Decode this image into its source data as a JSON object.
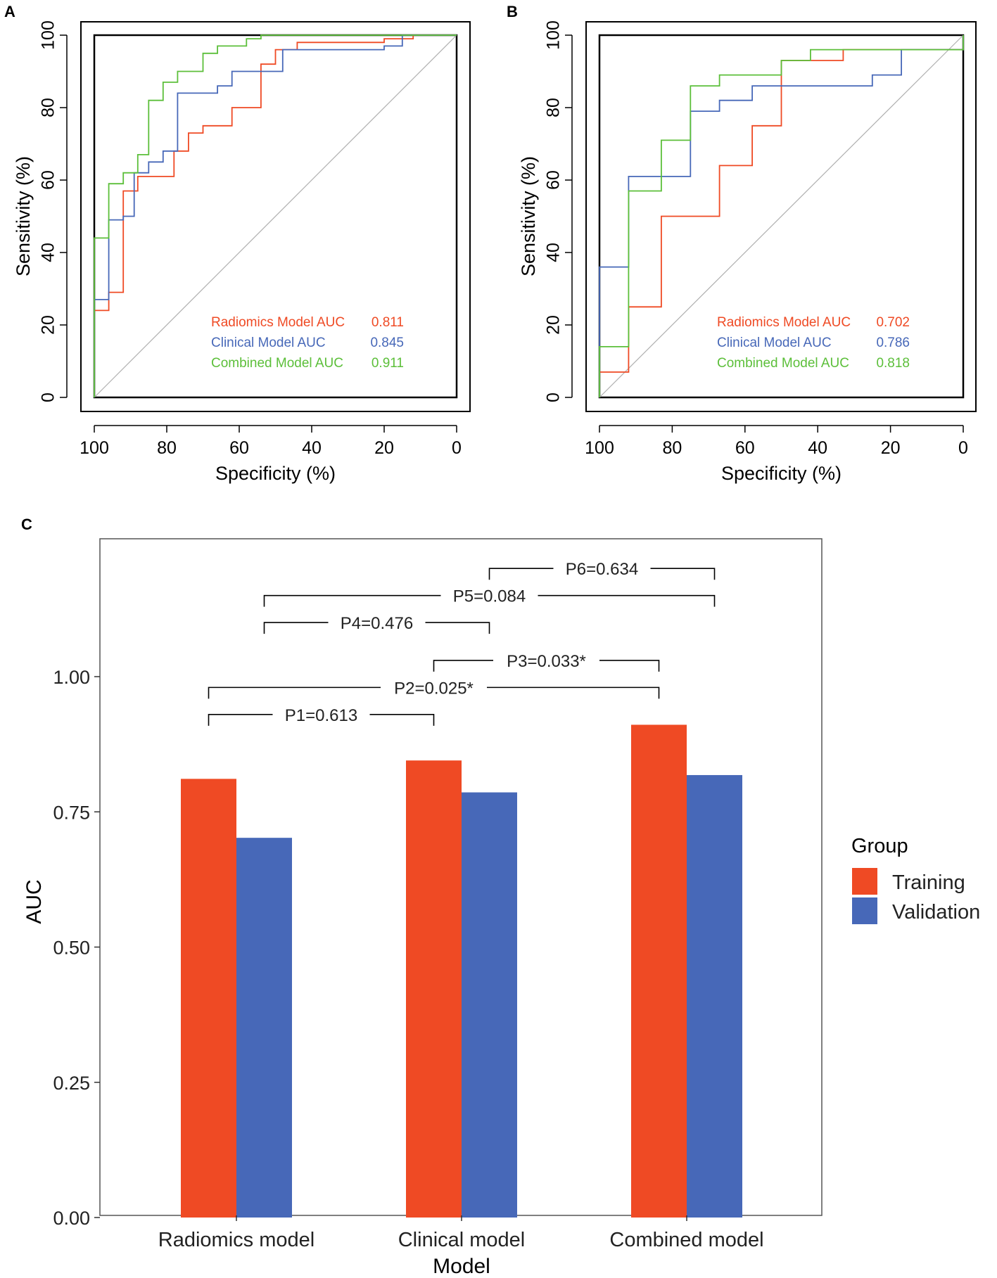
{
  "chart_data": [
    {
      "panel": "A",
      "type": "line",
      "xlabel": "Specificity (%)",
      "ylabel": "Sensitivity (%)",
      "xlim": [
        100,
        0
      ],
      "ylim": [
        0,
        100
      ],
      "xticks": [
        "100",
        "80",
        "60",
        "40",
        "20",
        "0"
      ],
      "yticks": [
        "0",
        "20",
        "40",
        "60",
        "80",
        "100"
      ],
      "series": [
        {
          "name": "Radiomics Model AUC 0.811",
          "label_text": "Radiomics Model AUC",
          "auc": "0.811",
          "color": "#ef4a24",
          "points": [
            [
              100,
              0
            ],
            [
              100,
              24
            ],
            [
              96,
              24
            ],
            [
              96,
              29
            ],
            [
              92,
              29
            ],
            [
              92,
              57
            ],
            [
              88,
              57
            ],
            [
              88,
              61
            ],
            [
              78,
              61
            ],
            [
              78,
              68
            ],
            [
              74,
              68
            ],
            [
              74,
              73
            ],
            [
              70,
              73
            ],
            [
              70,
              75
            ],
            [
              62,
              75
            ],
            [
              62,
              80
            ],
            [
              54,
              80
            ],
            [
              54,
              92
            ],
            [
              50,
              92
            ],
            [
              50,
              96
            ],
            [
              44,
              96
            ],
            [
              44,
              98
            ],
            [
              20,
              98
            ],
            [
              20,
              99
            ],
            [
              12,
              99
            ],
            [
              12,
              100
            ],
            [
              0,
              100
            ]
          ]
        },
        {
          "name": "Clinical Model AUC 0.845",
          "label_text": "Clinical Model AUC",
          "auc": "0.845",
          "color": "#4768b8",
          "points": [
            [
              100,
              0
            ],
            [
              100,
              27
            ],
            [
              96,
              27
            ],
            [
              96,
              49
            ],
            [
              92,
              49
            ],
            [
              92,
              50
            ],
            [
              89,
              50
            ],
            [
              89,
              62
            ],
            [
              85,
              62
            ],
            [
              85,
              65
            ],
            [
              81,
              65
            ],
            [
              81,
              68
            ],
            [
              77,
              68
            ],
            [
              77,
              84
            ],
            [
              66,
              84
            ],
            [
              66,
              86
            ],
            [
              62,
              86
            ],
            [
              62,
              90
            ],
            [
              54,
              90
            ],
            [
              54,
              90
            ],
            [
              48,
              90
            ],
            [
              48,
              96
            ],
            [
              20,
              96
            ],
            [
              20,
              97
            ],
            [
              15,
              97
            ],
            [
              15,
              100
            ],
            [
              0,
              100
            ]
          ]
        },
        {
          "name": "Combined Model AUC 0.911",
          "label_text": "Combined Model AUC",
          "auc": "0.911",
          "color": "#5cbf3a",
          "points": [
            [
              100,
              0
            ],
            [
              100,
              44
            ],
            [
              96,
              44
            ],
            [
              96,
              59
            ],
            [
              92,
              59
            ],
            [
              92,
              62
            ],
            [
              88,
              62
            ],
            [
              88,
              67
            ],
            [
              85,
              67
            ],
            [
              85,
              82
            ],
            [
              81,
              82
            ],
            [
              81,
              87
            ],
            [
              77,
              87
            ],
            [
              77,
              90
            ],
            [
              70,
              90
            ],
            [
              70,
              95
            ],
            [
              66,
              95
            ],
            [
              66,
              97
            ],
            [
              58,
              97
            ],
            [
              58,
              99
            ],
            [
              54,
              99
            ],
            [
              54,
              100
            ],
            [
              0,
              100
            ]
          ]
        }
      ]
    },
    {
      "panel": "B",
      "type": "line",
      "xlabel": "Specificity (%)",
      "ylabel": "Sensitivity (%)",
      "xlim": [
        100,
        0
      ],
      "ylim": [
        0,
        100
      ],
      "xticks": [
        "100",
        "80",
        "60",
        "40",
        "20",
        "0"
      ],
      "yticks": [
        "0",
        "20",
        "40",
        "60",
        "80",
        "100"
      ],
      "series": [
        {
          "name": "Radiomics Model AUC 0.702",
          "label_text": "Radiomics Model AUC",
          "auc": "0.702",
          "color": "#ef4a24",
          "points": [
            [
              100,
              0
            ],
            [
              100,
              7
            ],
            [
              92,
              7
            ],
            [
              92,
              25
            ],
            [
              83,
              25
            ],
            [
              83,
              50
            ],
            [
              67,
              50
            ],
            [
              67,
              64
            ],
            [
              58,
              64
            ],
            [
              58,
              75
            ],
            [
              50,
              75
            ],
            [
              50,
              93
            ],
            [
              33,
              93
            ],
            [
              33,
              96
            ],
            [
              0,
              96
            ],
            [
              0,
              100
            ]
          ]
        },
        {
          "name": "Clinical Model AUC 0.786",
          "label_text": "Clinical Model AUC",
          "auc": "0.786",
          "color": "#4768b8",
          "points": [
            [
              100,
              0
            ],
            [
              100,
              36
            ],
            [
              92,
              36
            ],
            [
              92,
              61
            ],
            [
              75,
              61
            ],
            [
              75,
              79
            ],
            [
              67,
              79
            ],
            [
              67,
              82
            ],
            [
              58,
              82
            ],
            [
              58,
              86
            ],
            [
              25,
              86
            ],
            [
              25,
              89
            ],
            [
              17,
              89
            ],
            [
              17,
              96
            ],
            [
              0,
              96
            ],
            [
              0,
              100
            ]
          ]
        },
        {
          "name": "Combined Model AUC 0.818",
          "label_text": "Combined Model AUC",
          "auc": "0.818",
          "color": "#5cbf3a",
          "points": [
            [
              100,
              0
            ],
            [
              100,
              14
            ],
            [
              92,
              14
            ],
            [
              92,
              57
            ],
            [
              83,
              57
            ],
            [
              83,
              71
            ],
            [
              75,
              71
            ],
            [
              75,
              86
            ],
            [
              67,
              86
            ],
            [
              67,
              89
            ],
            [
              50,
              89
            ],
            [
              50,
              93
            ],
            [
              42,
              93
            ],
            [
              42,
              96
            ],
            [
              0,
              96
            ],
            [
              0,
              100
            ]
          ]
        }
      ]
    },
    {
      "panel": "C",
      "type": "bar",
      "xlabel": "Model",
      "ylabel": "AUC",
      "ylim": [
        0,
        1.25
      ],
      "yticks": [
        "0.00",
        "0.25",
        "0.50",
        "0.75",
        "1.00"
      ],
      "categories": [
        "Radiomics model",
        "Clinical model",
        "Combined model"
      ],
      "legend_title": "Group",
      "legend_position": "right",
      "series": [
        {
          "name": "Training",
          "color": "#ef4a24",
          "values": [
            0.811,
            0.845,
            0.911
          ]
        },
        {
          "name": "Validation",
          "color": "#4768b8",
          "values": [
            0.702,
            0.786,
            0.818
          ]
        }
      ],
      "comparisons": [
        {
          "label": "P1=0.613",
          "from": [
            0,
            0
          ],
          "to": [
            1,
            0
          ],
          "level": 0.93
        },
        {
          "label": "P2=0.025*",
          "from": [
            0,
            0
          ],
          "to": [
            2,
            0
          ],
          "level": 0.98
        },
        {
          "label": "P3=0.033*",
          "from": [
            1,
            0
          ],
          "to": [
            2,
            0
          ],
          "level": 1.03
        },
        {
          "label": "P4=0.476",
          "from": [
            0,
            1
          ],
          "to": [
            1,
            1
          ],
          "level": 1.1
        },
        {
          "label": "P5=0.084",
          "from": [
            0,
            1
          ],
          "to": [
            2,
            1
          ],
          "level": 1.15
        },
        {
          "label": "P6=0.634",
          "from": [
            1,
            1
          ],
          "to": [
            2,
            1
          ],
          "level": 1.2
        }
      ]
    }
  ]
}
